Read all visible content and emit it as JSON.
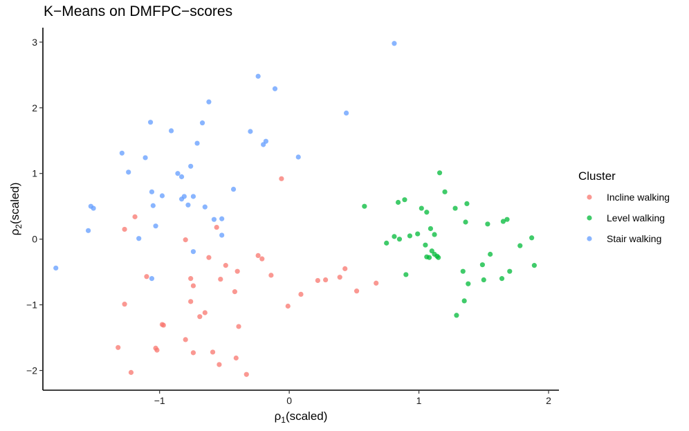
{
  "chart_data": {
    "type": "scatter",
    "title": "K−Means on DMFPC−scores",
    "xlabel": "ρ",
    "xlabel_sub": "1",
    "xlabel_suffix": "(scaled)",
    "ylabel": "ρ",
    "ylabel_sub": "2",
    "ylabel_suffix": "(scaled)",
    "xlim": [
      -1.9,
      2.08
    ],
    "ylim": [
      -2.3,
      3.22
    ],
    "xticks": [
      -1,
      0,
      1,
      2
    ],
    "yticks": [
      -2,
      -1,
      0,
      1,
      2,
      3
    ],
    "xtick_labels": [
      "−1",
      "0",
      "1",
      "2"
    ],
    "ytick_labels": [
      "−2",
      "−1",
      "0",
      "1",
      "2",
      "3"
    ],
    "grid": false,
    "legend": {
      "title": "Cluster",
      "position": "right"
    },
    "series": [
      {
        "name": "Incline walking",
        "color": "#F8766D",
        "points": [
          [
            -1.27,
            0.15
          ],
          [
            -1.19,
            0.34
          ],
          [
            -1.27,
            -0.99
          ],
          [
            -1.1,
            -0.57
          ],
          [
            -0.97,
            -1.31
          ],
          [
            -0.98,
            -1.3
          ],
          [
            -1.22,
            -2.03
          ],
          [
            -1.32,
            -1.65
          ],
          [
            -1.03,
            -1.66
          ],
          [
            -1.02,
            -1.69
          ],
          [
            -0.8,
            -0.01
          ],
          [
            -0.76,
            -0.6
          ],
          [
            -0.74,
            -0.71
          ],
          [
            -0.76,
            -0.95
          ],
          [
            -0.8,
            -1.53
          ],
          [
            -0.74,
            -1.73
          ],
          [
            -0.69,
            -1.18
          ],
          [
            -0.65,
            -1.12
          ],
          [
            -0.62,
            -0.28
          ],
          [
            -0.56,
            0.18
          ],
          [
            -0.53,
            -0.61
          ],
          [
            -0.49,
            -0.4
          ],
          [
            -0.42,
            -0.8
          ],
          [
            -0.4,
            -0.49
          ],
          [
            -0.39,
            -1.33
          ],
          [
            -0.41,
            -1.81
          ],
          [
            -0.54,
            -1.91
          ],
          [
            -0.59,
            -1.72
          ],
          [
            -0.33,
            -2.06
          ],
          [
            -0.24,
            -0.25
          ],
          [
            -0.21,
            -0.3
          ],
          [
            -0.14,
            -0.55
          ],
          [
            -0.06,
            0.92
          ],
          [
            -0.01,
            -1.02
          ],
          [
            0.09,
            -0.84
          ],
          [
            0.22,
            -0.63
          ],
          [
            0.28,
            -0.62
          ],
          [
            0.39,
            -0.58
          ],
          [
            0.43,
            -0.45
          ],
          [
            0.52,
            -0.79
          ],
          [
            0.67,
            -0.67
          ]
        ]
      },
      {
        "name": "Level walking",
        "color": "#00BA38",
        "points": [
          [
            0.58,
            0.5
          ],
          [
            0.75,
            -0.06
          ],
          [
            0.81,
            0.04
          ],
          [
            0.84,
            0.56
          ],
          [
            0.85,
            0.0
          ],
          [
            0.89,
            0.6
          ],
          [
            0.9,
            -0.54
          ],
          [
            0.93,
            0.05
          ],
          [
            0.99,
            0.08
          ],
          [
            1.02,
            0.47
          ],
          [
            1.05,
            -0.09
          ],
          [
            1.06,
            0.41
          ],
          [
            1.06,
            -0.27
          ],
          [
            1.08,
            -0.28
          ],
          [
            1.09,
            0.16
          ],
          [
            1.1,
            -0.18
          ],
          [
            1.12,
            0.07
          ],
          [
            1.12,
            -0.23
          ],
          [
            1.14,
            -0.26
          ],
          [
            1.15,
            -0.28
          ],
          [
            1.16,
            1.01
          ],
          [
            1.2,
            0.72
          ],
          [
            1.28,
            0.47
          ],
          [
            1.29,
            -1.16
          ],
          [
            1.34,
            -0.49
          ],
          [
            1.35,
            -0.94
          ],
          [
            1.36,
            0.26
          ],
          [
            1.37,
            0.54
          ],
          [
            1.38,
            -0.68
          ],
          [
            1.49,
            -0.39
          ],
          [
            1.5,
            -0.62
          ],
          [
            1.53,
            0.23
          ],
          [
            1.55,
            -0.23
          ],
          [
            1.64,
            -0.6
          ],
          [
            1.65,
            0.27
          ],
          [
            1.68,
            0.3
          ],
          [
            1.7,
            -0.49
          ],
          [
            1.78,
            -0.1
          ],
          [
            1.87,
            0.02
          ],
          [
            1.89,
            -0.4
          ]
        ]
      },
      {
        "name": "Stair walking",
        "color": "#619CFF",
        "points": [
          [
            -1.8,
            -0.44
          ],
          [
            -1.55,
            0.13
          ],
          [
            -1.53,
            0.5
          ],
          [
            -1.51,
            0.47
          ],
          [
            -1.29,
            1.31
          ],
          [
            -1.24,
            1.02
          ],
          [
            -1.16,
            0.01
          ],
          [
            -1.11,
            1.24
          ],
          [
            -1.07,
            1.78
          ],
          [
            -1.06,
            0.72
          ],
          [
            -1.05,
            0.51
          ],
          [
            -1.03,
            0.2
          ],
          [
            -1.06,
            -0.6
          ],
          [
            -0.98,
            0.66
          ],
          [
            -0.91,
            1.65
          ],
          [
            -0.86,
            1.0
          ],
          [
            -0.83,
            0.95
          ],
          [
            -0.83,
            0.61
          ],
          [
            -0.81,
            0.65
          ],
          [
            -0.78,
            0.52
          ],
          [
            -0.76,
            1.11
          ],
          [
            -0.74,
            0.65
          ],
          [
            -0.74,
            -0.19
          ],
          [
            -0.71,
            1.46
          ],
          [
            -0.67,
            1.77
          ],
          [
            -0.65,
            0.49
          ],
          [
            -0.62,
            2.09
          ],
          [
            -0.58,
            0.3
          ],
          [
            -0.52,
            0.31
          ],
          [
            -0.52,
            0.06
          ],
          [
            -0.43,
            0.76
          ],
          [
            -0.3,
            1.64
          ],
          [
            -0.24,
            2.48
          ],
          [
            -0.2,
            1.44
          ],
          [
            -0.18,
            1.49
          ],
          [
            -0.11,
            2.29
          ],
          [
            0.07,
            1.25
          ],
          [
            0.44,
            1.92
          ],
          [
            0.81,
            2.98
          ]
        ]
      }
    ]
  }
}
